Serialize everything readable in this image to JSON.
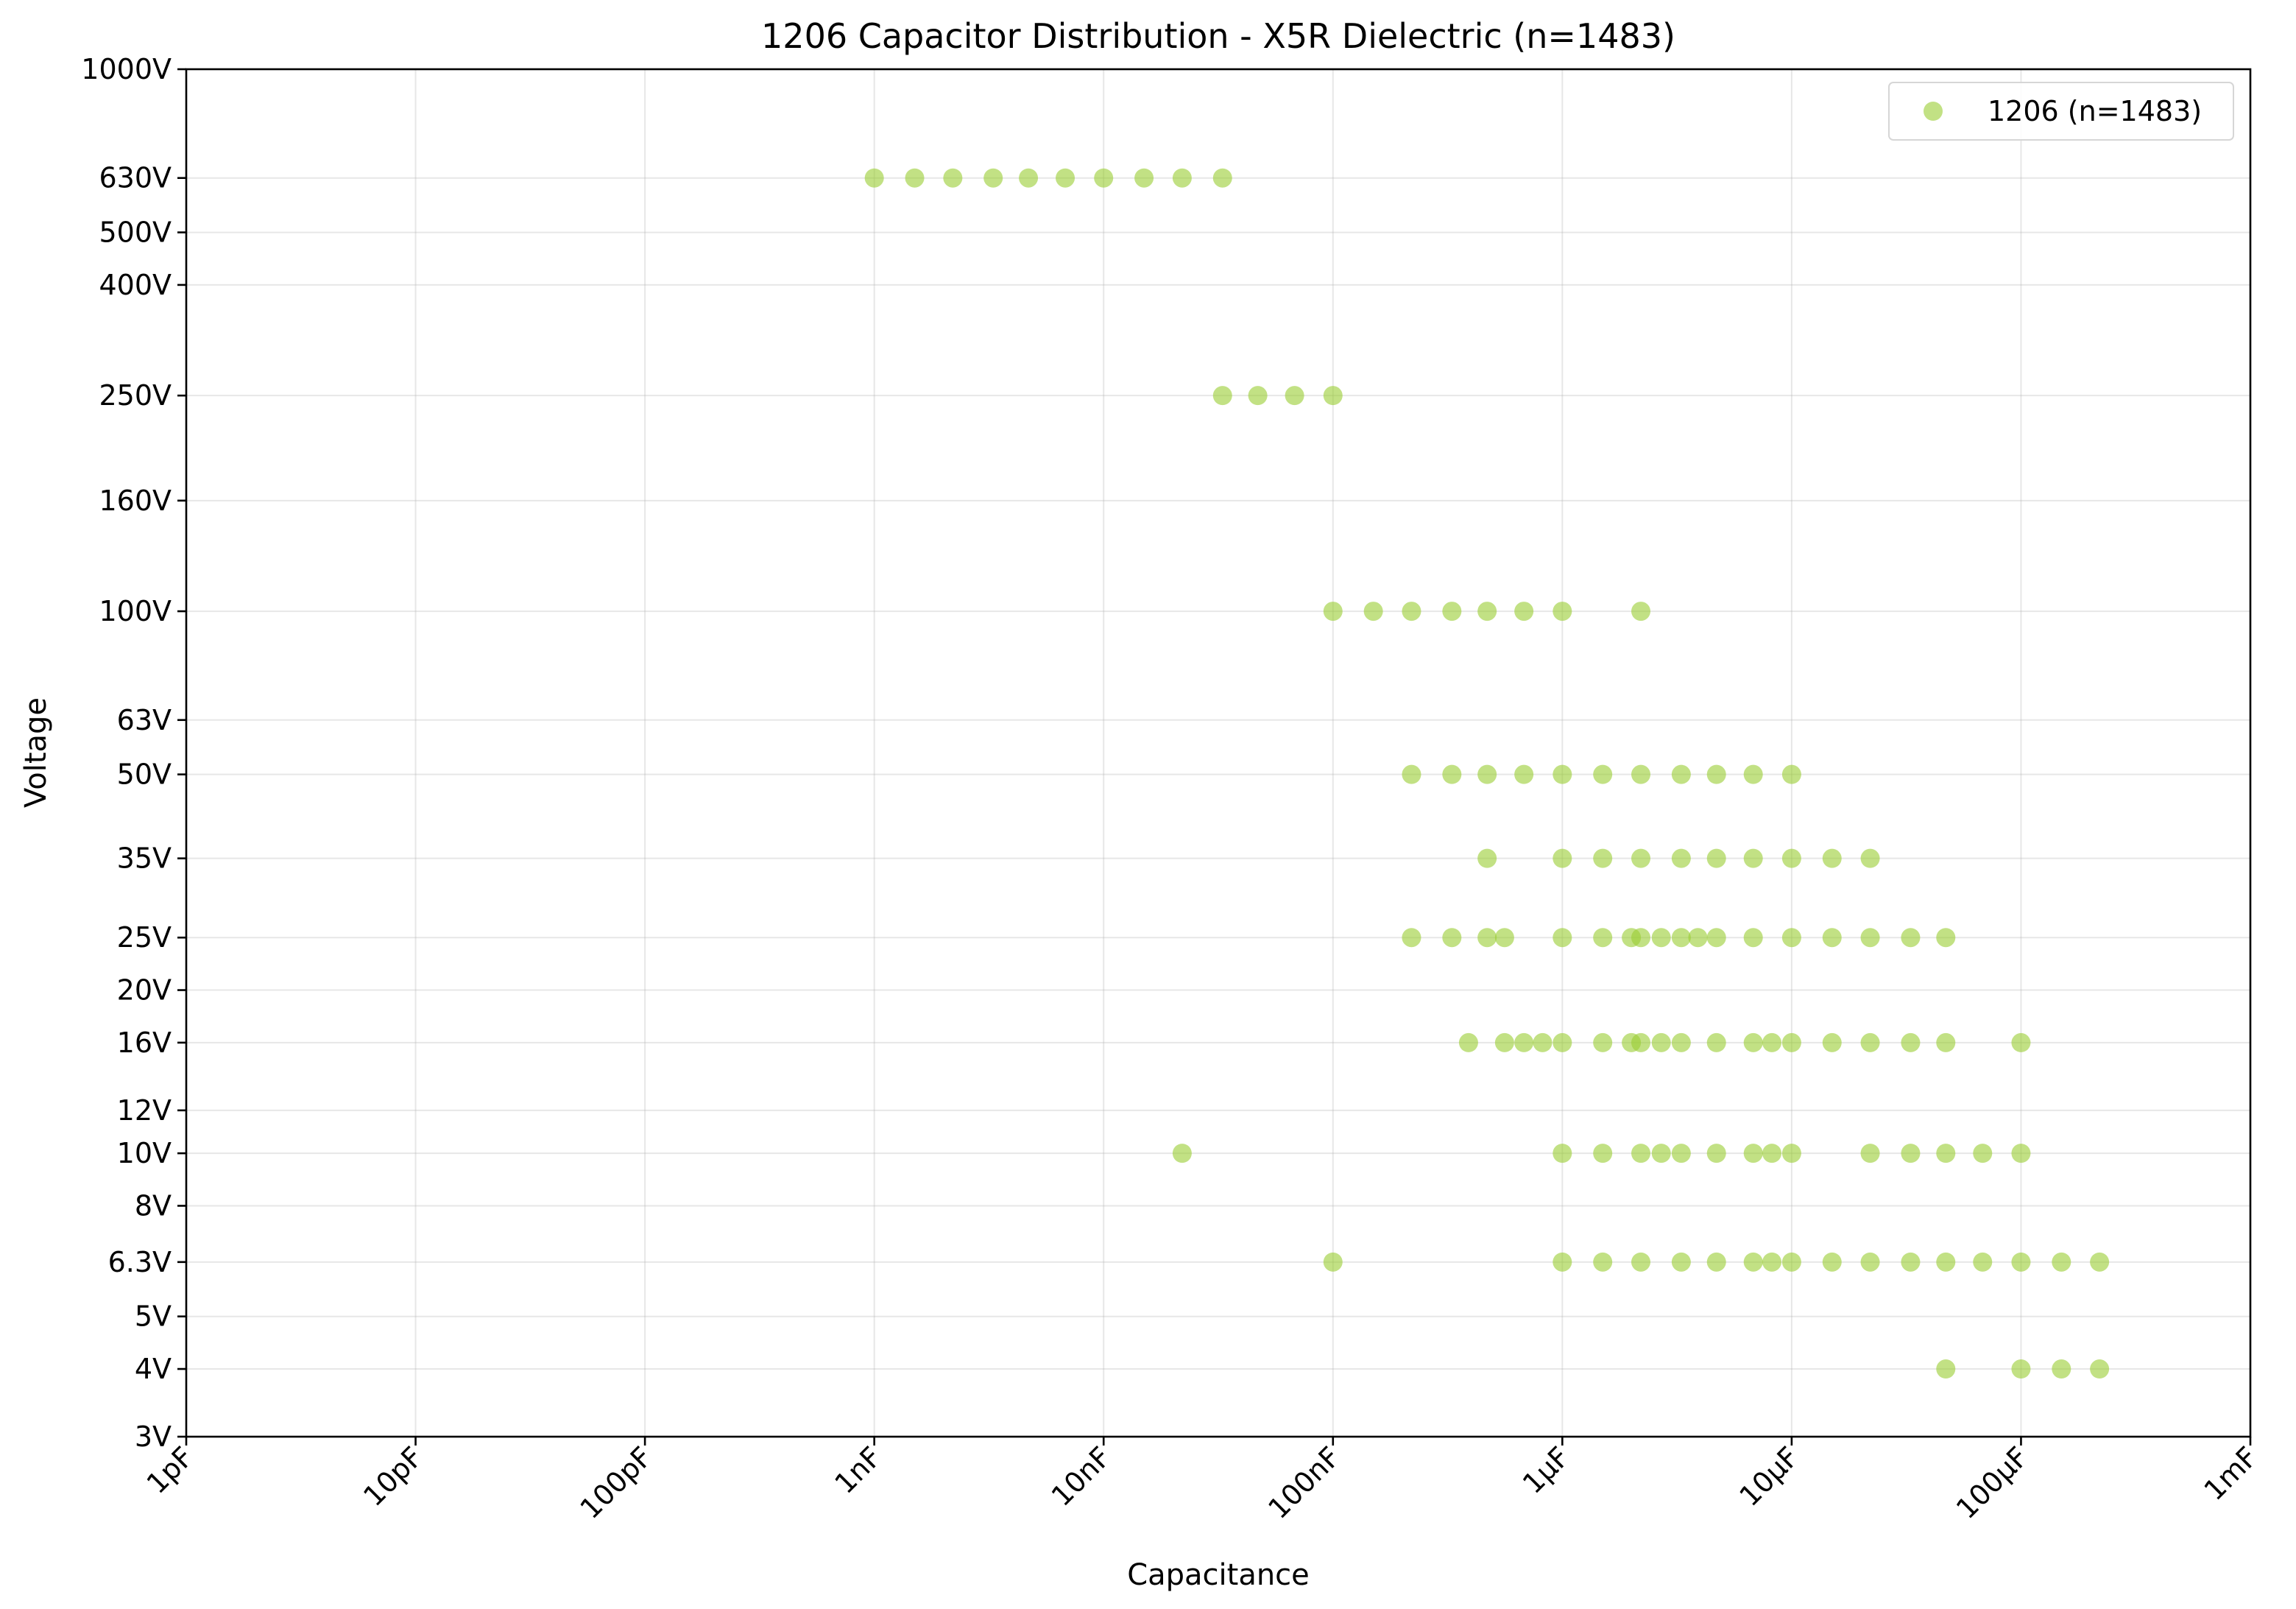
{
  "chart_data": {
    "type": "scatter",
    "title": "1206 Capacitor Distribution - X5R Dielectric (n=1483)",
    "xlabel": "Capacitance",
    "ylabel": "Voltage",
    "x_scale": "log",
    "y_scale": "log",
    "x_unit": "F",
    "y_unit": "V",
    "xlim": [
      1e-12,
      0.001
    ],
    "ylim": [
      3,
      1000
    ],
    "x_ticks": [
      {
        "value": 1e-12,
        "label": "1pF"
      },
      {
        "value": 1e-11,
        "label": "10pF"
      },
      {
        "value": 1e-10,
        "label": "100pF"
      },
      {
        "value": 1e-09,
        "label": "1nF"
      },
      {
        "value": 1e-08,
        "label": "10nF"
      },
      {
        "value": 1e-07,
        "label": "100nF"
      },
      {
        "value": 1e-06,
        "label": "1µF"
      },
      {
        "value": 1e-05,
        "label": "10µF"
      },
      {
        "value": 0.0001,
        "label": "100µF"
      },
      {
        "value": 0.001,
        "label": "1mF"
      }
    ],
    "y_ticks": [
      {
        "value": 3,
        "label": "3V"
      },
      {
        "value": 4,
        "label": "4V"
      },
      {
        "value": 5,
        "label": "5V"
      },
      {
        "value": 6.3,
        "label": "6.3V"
      },
      {
        "value": 8,
        "label": "8V"
      },
      {
        "value": 10,
        "label": "10V"
      },
      {
        "value": 12,
        "label": "12V"
      },
      {
        "value": 16,
        "label": "16V"
      },
      {
        "value": 20,
        "label": "20V"
      },
      {
        "value": 25,
        "label": "25V"
      },
      {
        "value": 35,
        "label": "35V"
      },
      {
        "value": 50,
        "label": "50V"
      },
      {
        "value": 63,
        "label": "63V"
      },
      {
        "value": 100,
        "label": "100V"
      },
      {
        "value": 160,
        "label": "160V"
      },
      {
        "value": 250,
        "label": "250V"
      },
      {
        "value": 400,
        "label": "400V"
      },
      {
        "value": 500,
        "label": "500V"
      },
      {
        "value": 630,
        "label": "630V"
      },
      {
        "value": 1000,
        "label": "1000V"
      }
    ],
    "grid": true,
    "legend_position": "top-right",
    "series": [
      {
        "name": "1206 (n=1483)",
        "color": "#9acd32",
        "marker_alpha": 0.6,
        "points": [
          {
            "x": 1e-09,
            "y": 630
          },
          {
            "x": 1.5e-09,
            "y": 630
          },
          {
            "x": 2.2e-09,
            "y": 630
          },
          {
            "x": 3.3e-09,
            "y": 630
          },
          {
            "x": 4.7e-09,
            "y": 630
          },
          {
            "x": 6.8e-09,
            "y": 630
          },
          {
            "x": 1e-08,
            "y": 630
          },
          {
            "x": 1.5e-08,
            "y": 630
          },
          {
            "x": 2.2e-08,
            "y": 630
          },
          {
            "x": 3.3e-08,
            "y": 630
          },
          {
            "x": 3.3e-08,
            "y": 250
          },
          {
            "x": 4.7e-08,
            "y": 250
          },
          {
            "x": 6.8e-08,
            "y": 250
          },
          {
            "x": 1e-07,
            "y": 250
          },
          {
            "x": 1e-07,
            "y": 100
          },
          {
            "x": 1.5e-07,
            "y": 100
          },
          {
            "x": 2.2e-07,
            "y": 100
          },
          {
            "x": 3.3e-07,
            "y": 100
          },
          {
            "x": 4.7e-07,
            "y": 100
          },
          {
            "x": 6.8e-07,
            "y": 100
          },
          {
            "x": 1e-06,
            "y": 100
          },
          {
            "x": 2.2e-06,
            "y": 100
          },
          {
            "x": 2.2e-07,
            "y": 50
          },
          {
            "x": 3.3e-07,
            "y": 50
          },
          {
            "x": 4.7e-07,
            "y": 50
          },
          {
            "x": 6.8e-07,
            "y": 50
          },
          {
            "x": 1e-06,
            "y": 50
          },
          {
            "x": 1.5e-06,
            "y": 50
          },
          {
            "x": 2.2e-06,
            "y": 50
          },
          {
            "x": 3.3e-06,
            "y": 50
          },
          {
            "x": 4.7e-06,
            "y": 50
          },
          {
            "x": 6.8e-06,
            "y": 50
          },
          {
            "x": 1e-05,
            "y": 50
          },
          {
            "x": 4.7e-07,
            "y": 35
          },
          {
            "x": 1e-06,
            "y": 35
          },
          {
            "x": 1.5e-06,
            "y": 35
          },
          {
            "x": 2.2e-06,
            "y": 35
          },
          {
            "x": 3.3e-06,
            "y": 35
          },
          {
            "x": 4.7e-06,
            "y": 35
          },
          {
            "x": 6.8e-06,
            "y": 35
          },
          {
            "x": 1e-05,
            "y": 35
          },
          {
            "x": 1.5e-05,
            "y": 35
          },
          {
            "x": 2.2e-05,
            "y": 35
          },
          {
            "x": 2.2e-07,
            "y": 25
          },
          {
            "x": 3.3e-07,
            "y": 25
          },
          {
            "x": 4.7e-07,
            "y": 25
          },
          {
            "x": 5.6e-07,
            "y": 25
          },
          {
            "x": 1e-06,
            "y": 25
          },
          {
            "x": 1.5e-06,
            "y": 25
          },
          {
            "x": 2e-06,
            "y": 25
          },
          {
            "x": 2.2e-06,
            "y": 25
          },
          {
            "x": 2.7e-06,
            "y": 25
          },
          {
            "x": 3.3e-06,
            "y": 25
          },
          {
            "x": 3.9e-06,
            "y": 25
          },
          {
            "x": 4.7e-06,
            "y": 25
          },
          {
            "x": 6.8e-06,
            "y": 25
          },
          {
            "x": 1e-05,
            "y": 25
          },
          {
            "x": 1.5e-05,
            "y": 25
          },
          {
            "x": 2.2e-05,
            "y": 25
          },
          {
            "x": 3.3e-05,
            "y": 25
          },
          {
            "x": 4.7e-05,
            "y": 25
          },
          {
            "x": 3.9e-07,
            "y": 16
          },
          {
            "x": 5.6e-07,
            "y": 16
          },
          {
            "x": 6.8e-07,
            "y": 16
          },
          {
            "x": 8.2e-07,
            "y": 16
          },
          {
            "x": 1e-06,
            "y": 16
          },
          {
            "x": 1.5e-06,
            "y": 16
          },
          {
            "x": 2e-06,
            "y": 16
          },
          {
            "x": 2.2e-06,
            "y": 16
          },
          {
            "x": 2.7e-06,
            "y": 16
          },
          {
            "x": 3.3e-06,
            "y": 16
          },
          {
            "x": 4.7e-06,
            "y": 16
          },
          {
            "x": 6.8e-06,
            "y": 16
          },
          {
            "x": 8.2e-06,
            "y": 16
          },
          {
            "x": 1e-05,
            "y": 16
          },
          {
            "x": 1.5e-05,
            "y": 16
          },
          {
            "x": 2.2e-05,
            "y": 16
          },
          {
            "x": 3.3e-05,
            "y": 16
          },
          {
            "x": 4.7e-05,
            "y": 16
          },
          {
            "x": 0.0001,
            "y": 16
          },
          {
            "x": 2.2e-08,
            "y": 10
          },
          {
            "x": 1e-06,
            "y": 10
          },
          {
            "x": 1.5e-06,
            "y": 10
          },
          {
            "x": 2.2e-06,
            "y": 10
          },
          {
            "x": 2.7e-06,
            "y": 10
          },
          {
            "x": 3.3e-06,
            "y": 10
          },
          {
            "x": 4.7e-06,
            "y": 10
          },
          {
            "x": 6.8e-06,
            "y": 10
          },
          {
            "x": 8.2e-06,
            "y": 10
          },
          {
            "x": 1e-05,
            "y": 10
          },
          {
            "x": 2.2e-05,
            "y": 10
          },
          {
            "x": 3.3e-05,
            "y": 10
          },
          {
            "x": 4.7e-05,
            "y": 10
          },
          {
            "x": 6.8e-05,
            "y": 10
          },
          {
            "x": 0.0001,
            "y": 10
          },
          {
            "x": 1e-07,
            "y": 6.3
          },
          {
            "x": 1e-06,
            "y": 6.3
          },
          {
            "x": 1.5e-06,
            "y": 6.3
          },
          {
            "x": 2.2e-06,
            "y": 6.3
          },
          {
            "x": 3.3e-06,
            "y": 6.3
          },
          {
            "x": 4.7e-06,
            "y": 6.3
          },
          {
            "x": 6.8e-06,
            "y": 6.3
          },
          {
            "x": 8.2e-06,
            "y": 6.3
          },
          {
            "x": 1e-05,
            "y": 6.3
          },
          {
            "x": 1.5e-05,
            "y": 6.3
          },
          {
            "x": 2.2e-05,
            "y": 6.3
          },
          {
            "x": 3.3e-05,
            "y": 6.3
          },
          {
            "x": 4.7e-05,
            "y": 6.3
          },
          {
            "x": 6.8e-05,
            "y": 6.3
          },
          {
            "x": 0.0001,
            "y": 6.3
          },
          {
            "x": 0.00015,
            "y": 6.3
          },
          {
            "x": 0.00022,
            "y": 6.3
          },
          {
            "x": 4.7e-05,
            "y": 4
          },
          {
            "x": 0.0001,
            "y": 4
          },
          {
            "x": 0.00015,
            "y": 4
          },
          {
            "x": 0.00022,
            "y": 4
          }
        ]
      }
    ]
  }
}
